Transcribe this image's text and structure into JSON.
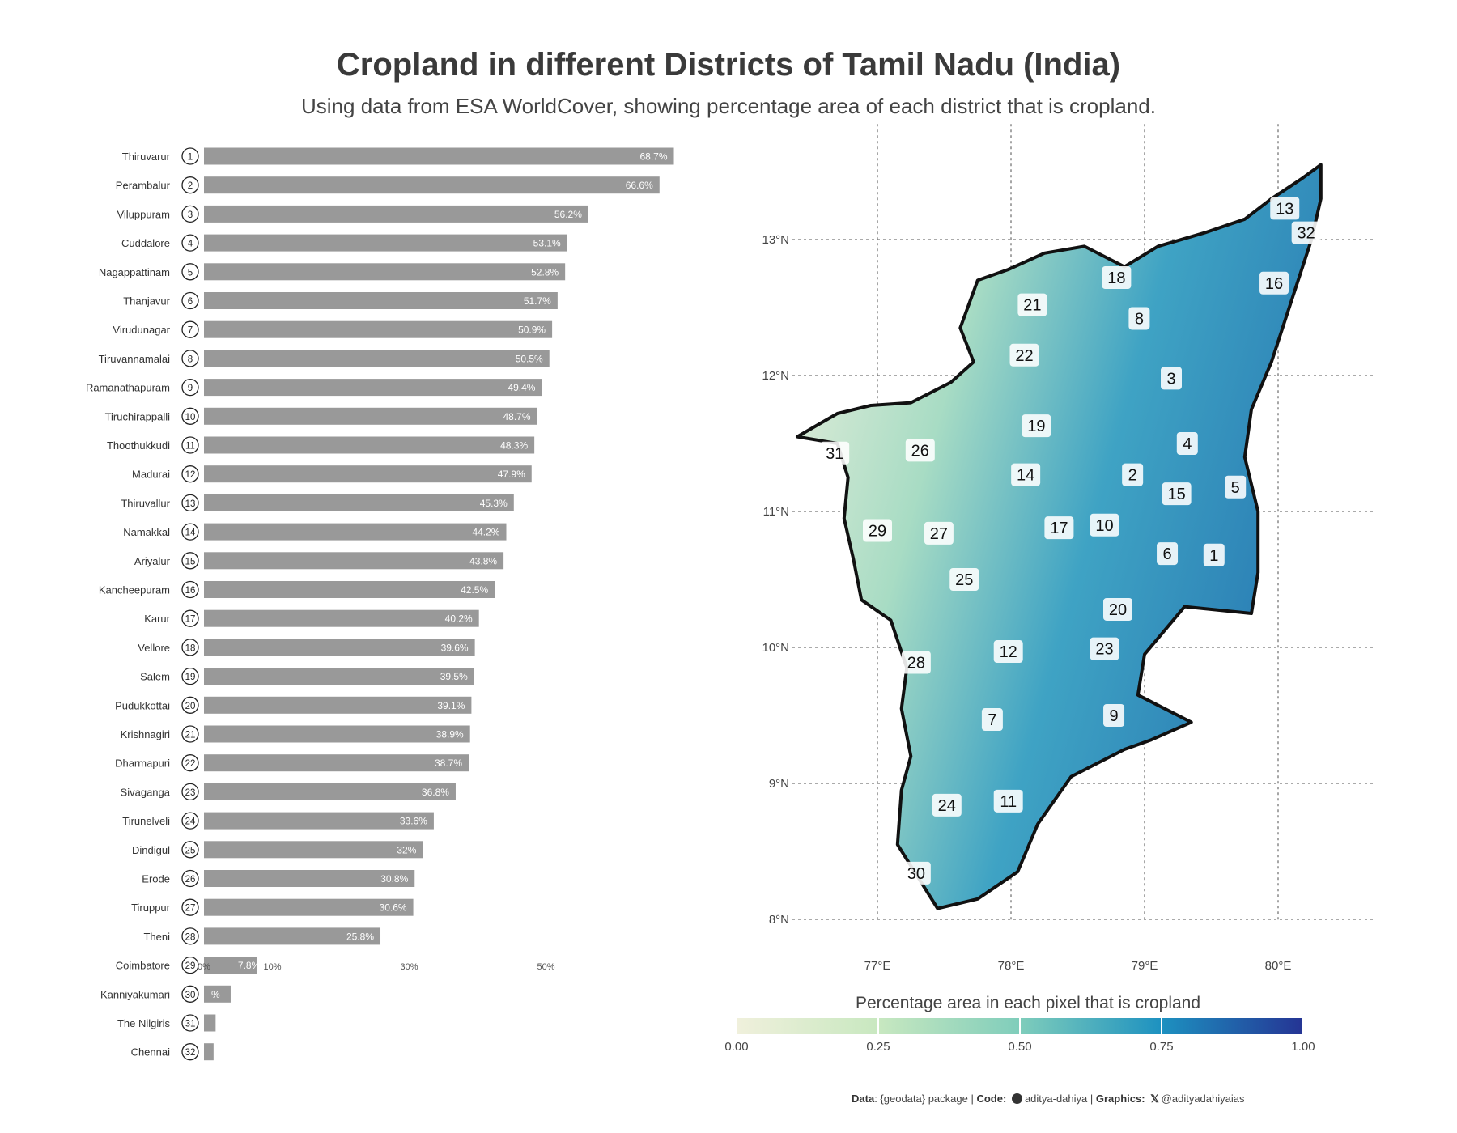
{
  "title": "Cropland in different Districts of Tamil Nadu (India)",
  "subtitle": "Using data from ESA WorldCover, showing percentage area of each district that is cropland.",
  "chart_data": [
    {
      "type": "bar",
      "orientation": "horizontal",
      "categories": [
        "Thiruvarur",
        "Perambalur",
        "Viluppuram",
        "Cuddalore",
        "Nagappattinam",
        "Thanjavur",
        "Virudunagar",
        "Tiruvannamalai",
        "Ramanathapuram",
        "Tiruchirappalli",
        "Thoothukkudi",
        "Madurai",
        "Thiruvallur",
        "Namakkal",
        "Ariyalur",
        "Kancheepuram",
        "Karur",
        "Vellore",
        "Salem",
        "Pudukkottai",
        "Krishnagiri",
        "Dharmapuri",
        "Sivaganga",
        "Tirunelveli",
        "Dindigul",
        "Erode",
        "Tiruppur",
        "Theni",
        "Coimbatore",
        "Kanniyakumari",
        "The Nilgiris",
        "Chennai"
      ],
      "ranks": [
        "1",
        "2",
        "3",
        "4",
        "5",
        "6",
        "7",
        "8",
        "9",
        "10",
        "11",
        "12",
        "13",
        "14",
        "15",
        "16",
        "17",
        "18",
        "19",
        "20",
        "21",
        "22",
        "23",
        "24",
        "25",
        "26",
        "27",
        "28",
        "29",
        "30",
        "31",
        "32"
      ],
      "values": [
        68.7,
        66.6,
        56.2,
        53.1,
        52.8,
        51.7,
        50.9,
        50.5,
        49.4,
        48.7,
        48.3,
        47.9,
        45.3,
        44.2,
        43.8,
        42.5,
        40.2,
        39.6,
        39.5,
        39.1,
        38.9,
        38.7,
        36.8,
        33.6,
        32,
        30.8,
        30.6,
        25.8,
        7.8,
        3.9,
        1.7,
        1.4
      ],
      "value_labels": [
        "68.7%",
        "66.6%",
        "56.2%",
        "53.1%",
        "52.8%",
        "51.7%",
        "50.9%",
        "50.5%",
        "49.4%",
        "48.7%",
        "48.3%",
        "47.9%",
        "45.3%",
        "44.2%",
        "43.8%",
        "42.5%",
        "40.2%",
        "39.6%",
        "39.5%",
        "39.1%",
        "38.9%",
        "38.7%",
        "36.8%",
        "33.6%",
        "32%",
        "30.8%",
        "30.6%",
        "25.8%",
        "7.8%",
        "%",
        "",
        ""
      ],
      "x_ticks": [
        "0%",
        "10%",
        "30%",
        "50%"
      ],
      "x_tick_values": [
        0,
        10,
        30,
        50
      ],
      "xlim": [
        0,
        70
      ],
      "bar_color": "#999999",
      "label_color": "#ffffff"
    },
    {
      "type": "heatmap",
      "map_region": "Tamil Nadu",
      "lon_ticks": [
        "77°E",
        "78°E",
        "79°E",
        "80°E"
      ],
      "lon_values": [
        77,
        78,
        79,
        80
      ],
      "lat_ticks": [
        "13°N",
        "12°N",
        "11°N",
        "10°N",
        "9°N",
        "8°N"
      ],
      "lat_values": [
        13,
        12,
        11,
        10,
        9,
        8
      ],
      "xlim": [
        76.0,
        80.6
      ],
      "ylim": [
        7.7,
        13.9
      ],
      "district_labels": [
        {
          "rank": "1",
          "lon": 79.52,
          "lat": 10.68
        },
        {
          "rank": "2",
          "lon": 78.91,
          "lat": 11.27
        },
        {
          "rank": "3",
          "lon": 79.2,
          "lat": 11.98
        },
        {
          "rank": "4",
          "lon": 79.32,
          "lat": 11.5
        },
        {
          "rank": "5",
          "lon": 79.68,
          "lat": 11.18
        },
        {
          "rank": "6",
          "lon": 79.17,
          "lat": 10.69
        },
        {
          "rank": "7",
          "lon": 77.86,
          "lat": 9.47
        },
        {
          "rank": "8",
          "lon": 78.96,
          "lat": 12.42
        },
        {
          "rank": "9",
          "lon": 78.77,
          "lat": 9.5
        },
        {
          "rank": "10",
          "lon": 78.7,
          "lat": 10.9
        },
        {
          "rank": "11",
          "lon": 77.98,
          "lat": 8.87
        },
        {
          "rank": "12",
          "lon": 77.98,
          "lat": 9.97
        },
        {
          "rank": "13",
          "lon": 80.05,
          "lat": 13.23
        },
        {
          "rank": "14",
          "lon": 78.11,
          "lat": 11.27
        },
        {
          "rank": "15",
          "lon": 79.24,
          "lat": 11.13
        },
        {
          "rank": "16",
          "lon": 79.97,
          "lat": 12.68
        },
        {
          "rank": "17",
          "lon": 78.36,
          "lat": 10.88
        },
        {
          "rank": "18",
          "lon": 78.79,
          "lat": 12.72
        },
        {
          "rank": "19",
          "lon": 78.19,
          "lat": 11.63
        },
        {
          "rank": "20",
          "lon": 78.8,
          "lat": 10.28
        },
        {
          "rank": "21",
          "lon": 78.16,
          "lat": 12.52
        },
        {
          "rank": "22",
          "lon": 78.1,
          "lat": 12.15
        },
        {
          "rank": "23",
          "lon": 78.7,
          "lat": 9.99
        },
        {
          "rank": "24",
          "lon": 77.52,
          "lat": 8.84
        },
        {
          "rank": "25",
          "lon": 77.65,
          "lat": 10.5
        },
        {
          "rank": "26",
          "lon": 77.32,
          "lat": 11.45
        },
        {
          "rank": "27",
          "lon": 77.46,
          "lat": 10.84
        },
        {
          "rank": "28",
          "lon": 77.29,
          "lat": 9.89
        },
        {
          "rank": "29",
          "lon": 77.0,
          "lat": 10.86
        },
        {
          "rank": "30",
          "lon": 77.29,
          "lat": 8.34
        },
        {
          "rank": "31",
          "lon": 76.68,
          "lat": 11.43
        },
        {
          "rank": "32",
          "lon": 80.21,
          "lat": 13.05
        }
      ],
      "colorbar": {
        "title": "Percentage area in each pixel that is cropland",
        "ticks": [
          "0.00",
          "0.25",
          "0.50",
          "0.75",
          "1.00"
        ],
        "tick_values": [
          0,
          0.25,
          0.5,
          0.75,
          1
        ],
        "range": [
          0,
          1
        ],
        "colors": [
          "#f0f0dc",
          "#c8e8c0",
          "#7fcdbb",
          "#1d91c0",
          "#253494"
        ]
      }
    }
  ],
  "caption": {
    "data_label": "Data",
    "data_text": ": {geodata} package |",
    "code_label": "Code:",
    "code_handle": "aditya-dahiya",
    "separator": " | ",
    "graphics_label": "Graphics:",
    "graphics_handle": "@adityadahiyaias",
    "icons": [
      "github-icon",
      "x-icon"
    ]
  }
}
